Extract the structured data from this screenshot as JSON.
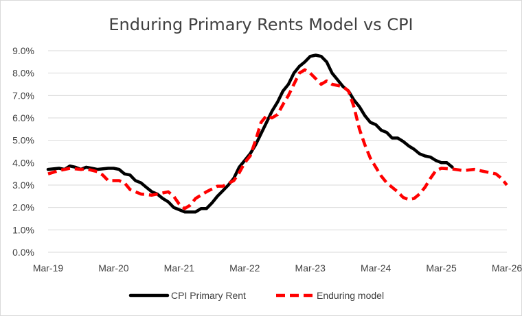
{
  "chart_data": {
    "type": "line",
    "title": "Enduring Primary Rents Model vs CPI",
    "xlabel": "",
    "ylabel": "",
    "x_tick_labels": [
      "Mar-19",
      "Mar-20",
      "Mar-21",
      "Mar-22",
      "Mar-23",
      "Mar-24",
      "Mar-25",
      "Mar-26"
    ],
    "y_tick_labels": [
      "0.0%",
      "1.0%",
      "2.0%",
      "3.0%",
      "4.0%",
      "5.0%",
      "6.0%",
      "7.0%",
      "8.0%",
      "9.0%"
    ],
    "ylim": [
      0,
      9
    ],
    "xlim": [
      "2019-03",
      "2026-03"
    ],
    "grid": true,
    "legend": "bottom",
    "series": [
      {
        "name": "CPI Primary Rent",
        "color": "#000000",
        "style": "solid",
        "points": [
          [
            "2019-03",
            3.7
          ],
          [
            "2019-05",
            3.75
          ],
          [
            "2019-06",
            3.7
          ],
          [
            "2019-07",
            3.85
          ],
          [
            "2019-08",
            3.8
          ],
          [
            "2019-09",
            3.7
          ],
          [
            "2019-10",
            3.8
          ],
          [
            "2019-12",
            3.7
          ],
          [
            "2020-02",
            3.75
          ],
          [
            "2020-03",
            3.75
          ],
          [
            "2020-04",
            3.7
          ],
          [
            "2020-05",
            3.5
          ],
          [
            "2020-06",
            3.45
          ],
          [
            "2020-07",
            3.2
          ],
          [
            "2020-08",
            3.1
          ],
          [
            "2020-09",
            2.9
          ],
          [
            "2020-10",
            2.7
          ],
          [
            "2020-11",
            2.6
          ],
          [
            "2020-12",
            2.4
          ],
          [
            "2021-01",
            2.25
          ],
          [
            "2021-02",
            2.0
          ],
          [
            "2021-03",
            1.9
          ],
          [
            "2021-04",
            1.8
          ],
          [
            "2021-06",
            1.8
          ],
          [
            "2021-07",
            1.95
          ],
          [
            "2021-08",
            1.95
          ],
          [
            "2021-09",
            2.2
          ],
          [
            "2021-10",
            2.5
          ],
          [
            "2021-11",
            2.75
          ],
          [
            "2021-12",
            3.0
          ],
          [
            "2022-01",
            3.3
          ],
          [
            "2022-02",
            3.8
          ],
          [
            "2022-03",
            4.1
          ],
          [
            "2022-04",
            4.4
          ],
          [
            "2022-05",
            4.8
          ],
          [
            "2022-06",
            5.3
          ],
          [
            "2022-07",
            5.8
          ],
          [
            "2022-08",
            6.3
          ],
          [
            "2022-09",
            6.7
          ],
          [
            "2022-10",
            7.2
          ],
          [
            "2022-11",
            7.5
          ],
          [
            "2022-12",
            8.0
          ],
          [
            "2023-01",
            8.3
          ],
          [
            "2023-02",
            8.5
          ],
          [
            "2023-03",
            8.75
          ],
          [
            "2023-04",
            8.8
          ],
          [
            "2023-05",
            8.75
          ],
          [
            "2023-06",
            8.5
          ],
          [
            "2023-07",
            8.0
          ],
          [
            "2023-08",
            7.7
          ],
          [
            "2023-09",
            7.4
          ],
          [
            "2023-10",
            7.2
          ],
          [
            "2023-11",
            6.8
          ],
          [
            "2023-12",
            6.5
          ],
          [
            "2024-01",
            6.1
          ],
          [
            "2024-02",
            5.8
          ],
          [
            "2024-03",
            5.7
          ],
          [
            "2024-04",
            5.45
          ],
          [
            "2024-05",
            5.35
          ],
          [
            "2024-06",
            5.1
          ],
          [
            "2024-07",
            5.1
          ],
          [
            "2024-08",
            4.95
          ],
          [
            "2024-09",
            4.75
          ],
          [
            "2024-10",
            4.6
          ],
          [
            "2024-11",
            4.4
          ],
          [
            "2024-12",
            4.3
          ],
          [
            "2025-01",
            4.25
          ],
          [
            "2025-02",
            4.1
          ],
          [
            "2025-03",
            4.0
          ],
          [
            "2025-04",
            4.0
          ],
          [
            "2025-05",
            3.8
          ]
        ]
      },
      {
        "name": "Enduring model",
        "color": "#ff0000",
        "style": "dashed",
        "points": [
          [
            "2019-03",
            3.5
          ],
          [
            "2019-05",
            3.65
          ],
          [
            "2019-07",
            3.75
          ],
          [
            "2019-09",
            3.7
          ],
          [
            "2019-10",
            3.72
          ],
          [
            "2019-12",
            3.6
          ],
          [
            "2020-01",
            3.45
          ],
          [
            "2020-02",
            3.2
          ],
          [
            "2020-04",
            3.2
          ],
          [
            "2020-05",
            3.1
          ],
          [
            "2020-06",
            2.8
          ],
          [
            "2020-08",
            2.6
          ],
          [
            "2020-10",
            2.55
          ],
          [
            "2020-11",
            2.6
          ],
          [
            "2021-01",
            2.7
          ],
          [
            "2021-02",
            2.5
          ],
          [
            "2021-03",
            2.15
          ],
          [
            "2021-04",
            1.95
          ],
          [
            "2021-05",
            2.1
          ],
          [
            "2021-06",
            2.4
          ],
          [
            "2021-08",
            2.7
          ],
          [
            "2021-10",
            2.95
          ],
          [
            "2021-11",
            2.95
          ],
          [
            "2022-01",
            3.2
          ],
          [
            "2022-02",
            3.55
          ],
          [
            "2022-03",
            4.0
          ],
          [
            "2022-04",
            4.3
          ],
          [
            "2022-05",
            5.0
          ],
          [
            "2022-06",
            5.8
          ],
          [
            "2022-07",
            6.1
          ],
          [
            "2022-08",
            6.0
          ],
          [
            "2022-09",
            6.15
          ],
          [
            "2022-10",
            6.6
          ],
          [
            "2022-11",
            7.0
          ],
          [
            "2022-12",
            7.5
          ],
          [
            "2023-01",
            8.0
          ],
          [
            "2023-02",
            8.15
          ],
          [
            "2023-03",
            8.0
          ],
          [
            "2023-04",
            7.75
          ],
          [
            "2023-05",
            7.5
          ],
          [
            "2023-06",
            7.65
          ],
          [
            "2023-07",
            7.5
          ],
          [
            "2023-09",
            7.4
          ],
          [
            "2023-10",
            7.2
          ],
          [
            "2023-11",
            6.5
          ],
          [
            "2023-12",
            5.5
          ],
          [
            "2024-01",
            4.8
          ],
          [
            "2024-02",
            4.2
          ],
          [
            "2024-03",
            3.8
          ],
          [
            "2024-04",
            3.4
          ],
          [
            "2024-05",
            3.1
          ],
          [
            "2024-06",
            2.9
          ],
          [
            "2024-07",
            2.7
          ],
          [
            "2024-08",
            2.45
          ],
          [
            "2024-09",
            2.35
          ],
          [
            "2024-10",
            2.4
          ],
          [
            "2024-11",
            2.6
          ],
          [
            "2024-12",
            2.9
          ],
          [
            "2025-01",
            3.3
          ],
          [
            "2025-02",
            3.65
          ],
          [
            "2025-03",
            3.75
          ],
          [
            "2025-05",
            3.72
          ],
          [
            "2025-07",
            3.65
          ],
          [
            "2025-09",
            3.7
          ],
          [
            "2025-10",
            3.65
          ],
          [
            "2025-11",
            3.6
          ],
          [
            "2026-01",
            3.5
          ],
          [
            "2026-02",
            3.3
          ],
          [
            "2026-03",
            3.0
          ]
        ]
      }
    ]
  }
}
